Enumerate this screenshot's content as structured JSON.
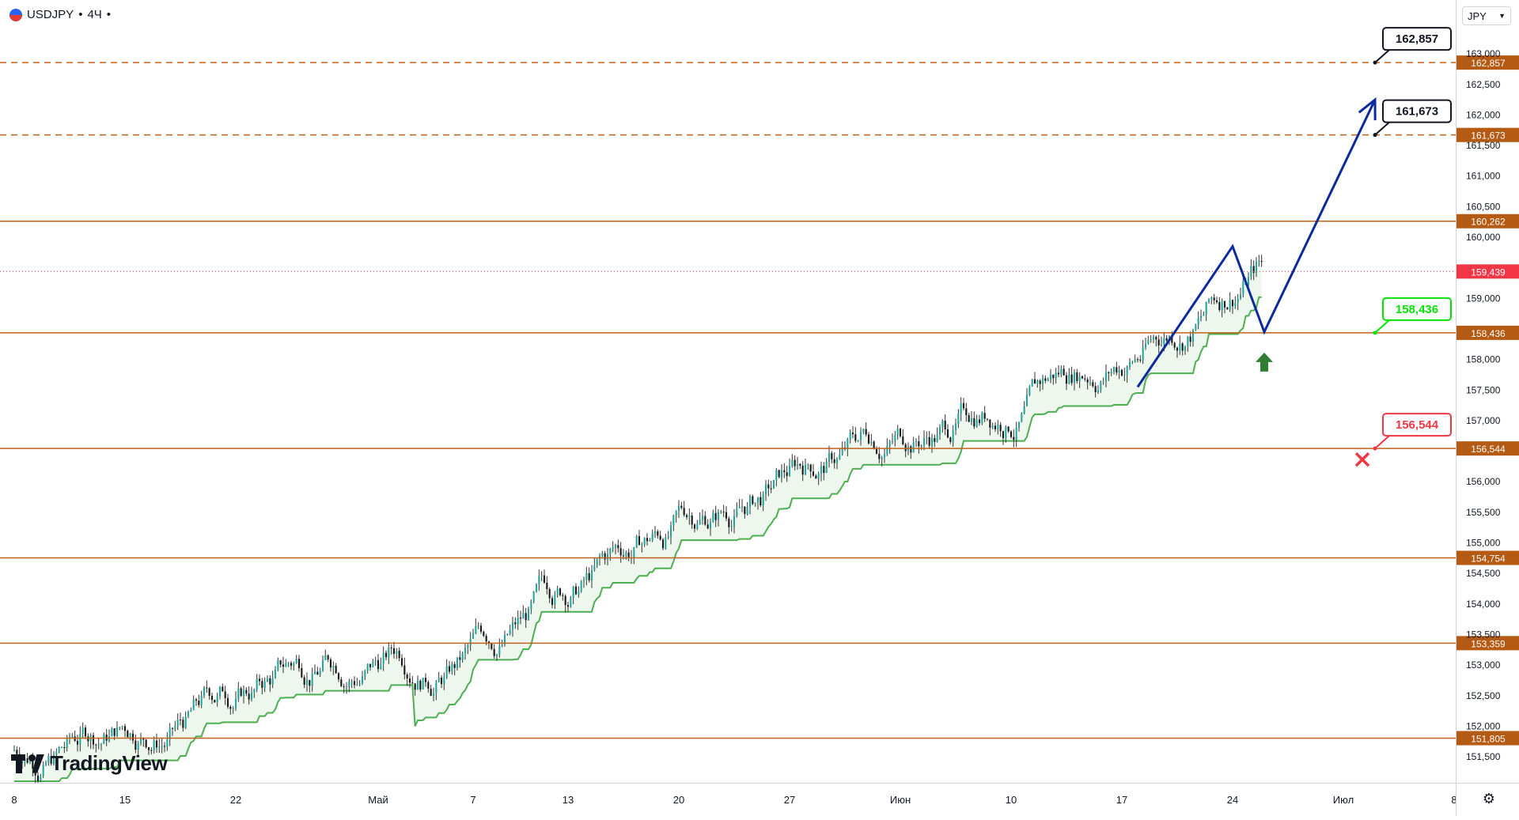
{
  "header": {
    "symbol": "USDJPY",
    "interval": "4Ч",
    "separator": "•"
  },
  "currency_selector": {
    "value": "JPY"
  },
  "watermark": {
    "text": "TradingView"
  },
  "colors": {
    "level_line": "#c0621a",
    "label_bg": "#b55a12",
    "bull_candle": "#1a1a1a",
    "forecast_path": "#0d2a9c",
    "supply_zone": "#ff0000",
    "trail_up": "#4caf50",
    "trail_down": "#f23645",
    "target_green": "#00e600",
    "stop_red": "#f23645",
    "arrow_up": "#2e7d32"
  },
  "chart_data": {
    "type": "candlestick",
    "symbol": "USDJPY",
    "interval": "4Ч",
    "ylim": [
      151.2,
      163.6
    ],
    "y_ticks": [
      "151,500",
      "152,000",
      "152,500",
      "153,000",
      "153,500",
      "154,000",
      "154,500",
      "155,000",
      "155,500",
      "156,000",
      "157,000",
      "157,500",
      "158,000",
      "159,000",
      "160,000",
      "160,500",
      "161,000",
      "161,500",
      "162,000",
      "162,500",
      "163,000"
    ],
    "x_ticks": [
      "8",
      "15",
      "22",
      "Май",
      "7",
      "13",
      "20",
      "27",
      "Июн",
      "10",
      "17",
      "24",
      "Июл",
      "8"
    ],
    "horizontal_levels": [
      {
        "value": 160.262,
        "label": "160,262",
        "style": "solid"
      },
      {
        "value": 158.436,
        "label": "158,436",
        "style": "solid"
      },
      {
        "value": 156.544,
        "label": "156,544",
        "style": "solid"
      },
      {
        "value": 154.754,
        "label": "154,754",
        "style": "solid"
      },
      {
        "value": 153.359,
        "label": "153,359",
        "style": "solid"
      },
      {
        "value": 151.805,
        "label": "151,805",
        "style": "solid"
      },
      {
        "value": 161.673,
        "label": "161,673",
        "style": "dashed"
      },
      {
        "value": 162.857,
        "label": "162,857",
        "style": "dashed"
      }
    ],
    "current_price": {
      "value": 159.439,
      "label": "159,439"
    },
    "callouts": [
      {
        "label": "162,857",
        "color": "black"
      },
      {
        "label": "161,673",
        "color": "black"
      },
      {
        "label": "158,436",
        "color": "green"
      },
      {
        "label": "156,544",
        "color": "red"
      }
    ],
    "forecast_path": [
      {
        "date": "Jun 18",
        "price": 157.55
      },
      {
        "date": "Jun 24",
        "price": 159.85
      },
      {
        "date": "Jun 26",
        "price": 158.45
      },
      {
        "date": "Jul 3",
        "price": 162.25
      }
    ],
    "trend": "closes rising from about 151.6 (8 Apr) to about 159.6 (26 Jun)"
  }
}
